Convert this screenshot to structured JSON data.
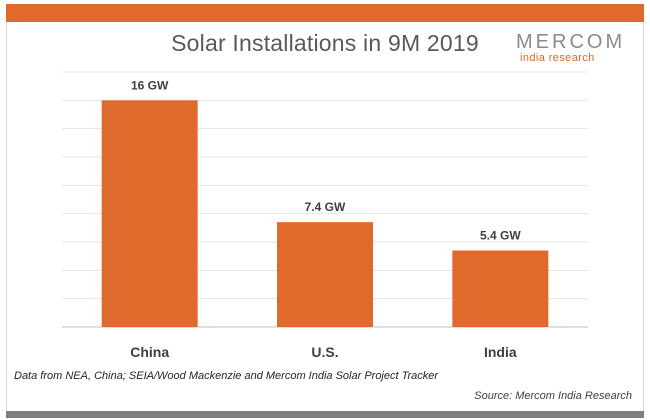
{
  "chart_data": {
    "type": "bar",
    "title": "Solar Installations in 9M 2019",
    "categories": [
      "China",
      "U.S.",
      "India"
    ],
    "values": [
      16,
      7.4,
      5.4
    ],
    "data_labels": [
      "16 GW",
      "7.4 GW",
      "5.4 GW"
    ],
    "ylim": [
      0,
      18
    ],
    "grid": true,
    "bar_color": "#e0692c"
  },
  "logo": {
    "main": "MERCOM",
    "sub": "india research"
  },
  "footnote": "Data from NEA, China; SEIA/Wood Mackenzie and Mercom India Solar Project Tracker",
  "source": "Source: Mercom India Research",
  "colors": {
    "accent": "#e0692c",
    "bottom_band": "#7f7f7f"
  }
}
